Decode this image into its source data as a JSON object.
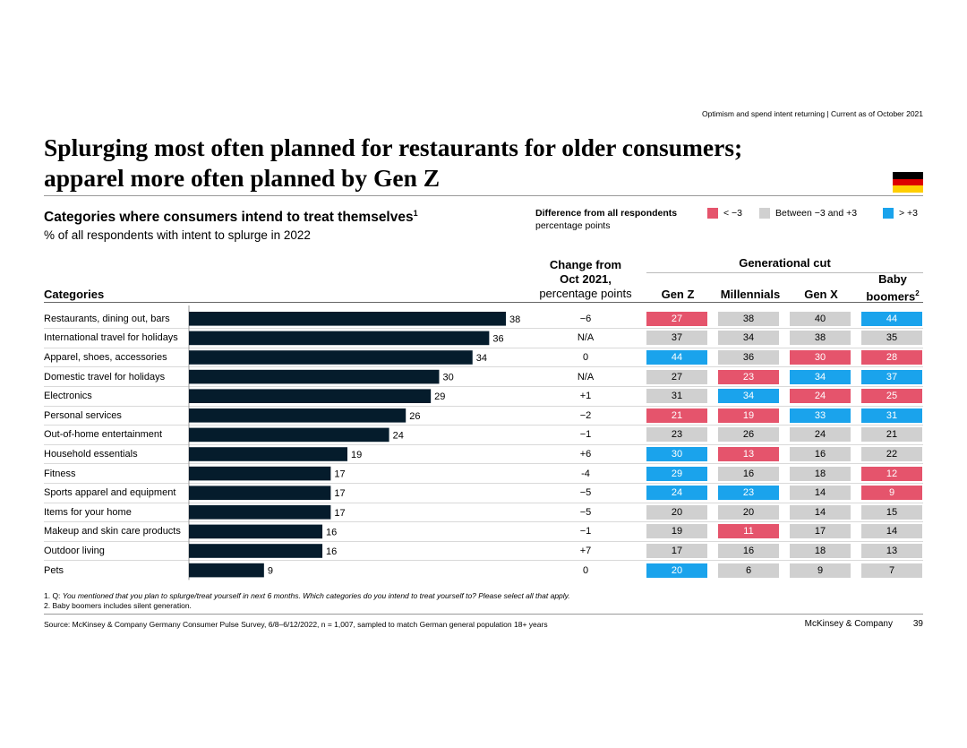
{
  "tracker": "Optimism and spend intent returning  | Current as of October 2021",
  "title_line1": "Splurging most often planned for restaurants for older consumers;",
  "title_line2": "apparel more often planned by Gen Z",
  "subtitle": "Categories where consumers intend to treat themselves",
  "subtitle_sup": "1",
  "subtitle2": "% of all respondents with intent to splurge in 2022",
  "legend": {
    "title": "Difference from all respondents",
    "subtitle": "percentage points",
    "items": [
      {
        "label": "< −3",
        "color": "#e5546c"
      },
      {
        "label": "Between −3 and +3",
        "color": "#d0d0d0"
      },
      {
        "label": "> +3",
        "color": "#1aa3ec"
      }
    ]
  },
  "headers": {
    "categories": "Categories",
    "change_line1": "Change from",
    "change_line2": "Oct 2021,",
    "change_line3": "percentage points",
    "generational_cut": "Generational cut",
    "gen_z": "Gen Z",
    "millennials": "Millennials",
    "gen_x": "Gen X",
    "boomers_line1": "Baby",
    "boomers_line2": "boomers",
    "boomers_sup": "2"
  },
  "colors": {
    "bar": "#051c2c",
    "low": "#e5546c",
    "mid": "#d0d0d0",
    "high": "#1aa3ec"
  },
  "chart_data": {
    "type": "bar",
    "orientation": "horizontal",
    "title": "Categories where consumers intend to treat themselves",
    "xlabel": "% of all respondents with intent to splurge in 2022",
    "xlim": [
      0,
      38
    ],
    "categories": [
      "Restaurants, dining out, bars",
      "International travel for holidays",
      "Apparel, shoes, accessories",
      "Domestic travel for holidays",
      "Electronics",
      "Personal services",
      "Out-of-home entertainment",
      "Household essentials",
      "Fitness",
      "Sports apparel and equipment",
      "Items for your home",
      "Makeup and skin care products",
      "Outdoor living",
      "Pets"
    ],
    "values": [
      38,
      36,
      34,
      30,
      29,
      26,
      24,
      19,
      17,
      17,
      17,
      16,
      16,
      9
    ],
    "change": [
      "−6",
      "N/A",
      "0",
      "N/A",
      "+1",
      "−2",
      "−1",
      "+6",
      "-4",
      "−5",
      "−5",
      "−1",
      "+7",
      "0"
    ],
    "generations": [
      {
        "name": "Gen Z",
        "values": [
          27,
          37,
          44,
          27,
          31,
          21,
          23,
          30,
          29,
          24,
          20,
          19,
          17,
          20
        ],
        "status": [
          "low",
          "mid",
          "high",
          "mid",
          "mid",
          "low",
          "mid",
          "high",
          "high",
          "high",
          "mid",
          "mid",
          "mid",
          "high"
        ]
      },
      {
        "name": "Millennials",
        "values": [
          38,
          34,
          36,
          23,
          34,
          19,
          26,
          13,
          16,
          23,
          20,
          11,
          16,
          6
        ],
        "status": [
          "mid",
          "mid",
          "mid",
          "low",
          "high",
          "low",
          "mid",
          "low",
          "mid",
          "high",
          "mid",
          "low",
          "mid",
          "mid"
        ]
      },
      {
        "name": "Gen X",
        "values": [
          40,
          38,
          30,
          34,
          24,
          33,
          24,
          16,
          18,
          14,
          14,
          17,
          18,
          9
        ],
        "status": [
          "mid",
          "mid",
          "low",
          "high",
          "low",
          "high",
          "mid",
          "mid",
          "mid",
          "mid",
          "mid",
          "mid",
          "mid",
          "mid"
        ]
      },
      {
        "name": "Baby boomers",
        "values": [
          44,
          35,
          28,
          37,
          25,
          31,
          21,
          22,
          12,
          9,
          15,
          14,
          13,
          7
        ],
        "status": [
          "high",
          "mid",
          "low",
          "high",
          "low",
          "high",
          "mid",
          "mid",
          "low",
          "low",
          "mid",
          "mid",
          "mid",
          "mid"
        ]
      }
    ]
  },
  "footnote1_prefix": "1. Q: ",
  "footnote1_text": "You mentioned that you plan to splurge/treat yourself in next 6 months. Which categories do you intend to treat yourself to? Please select all that apply.",
  "footnote2": "2. Baby boomers includes silent generation.",
  "source": "Source: McKinsey & Company Germany Consumer Pulse Survey, 6/8–6/12/2022, n = 1,007, sampled to match German general population 18+ years",
  "brand": "McKinsey & Company",
  "page_number": "39"
}
